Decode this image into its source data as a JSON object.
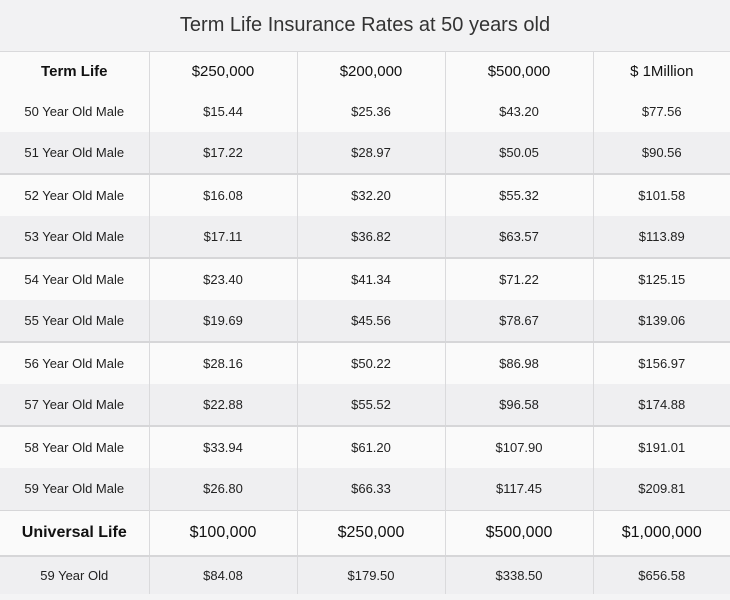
{
  "title": "Term Life Insurance Rates at 50 years old",
  "term": {
    "label": "Term Life",
    "columns": [
      "$250,000",
      "$200,000",
      "$500,000",
      "$ 1Million"
    ],
    "rows": [
      {
        "label": "50 Year Old Male",
        "values": [
          "$15.44",
          "$25.36",
          "$43.20",
          "$77.56"
        ]
      },
      {
        "label": "51 Year Old Male",
        "values": [
          "$17.22",
          "$28.97",
          "$50.05",
          "$90.56"
        ]
      },
      {
        "label": "52 Year Old Male",
        "values": [
          "$16.08",
          "$32.20",
          "$55.32",
          "$101.58"
        ]
      },
      {
        "label": "53 Year Old Male",
        "values": [
          "$17.11",
          "$36.82",
          "$63.57",
          "$113.89"
        ]
      },
      {
        "label": "54 Year Old Male",
        "values": [
          "$23.40",
          "$41.34",
          "$71.22",
          "$125.15"
        ]
      },
      {
        "label": "55 Year Old Male",
        "values": [
          "$19.69",
          "$45.56",
          "$78.67",
          "$139.06"
        ]
      },
      {
        "label": "56 Year Old Male",
        "values": [
          "$28.16",
          "$50.22",
          "$86.98",
          "$156.97"
        ]
      },
      {
        "label": "57 Year Old Male",
        "values": [
          "$22.88",
          "$55.52",
          "$96.58",
          "$174.88"
        ]
      },
      {
        "label": "58 Year Old Male",
        "values": [
          "$33.94",
          "$61.20",
          "$107.90",
          "$191.01"
        ]
      },
      {
        "label": "59 Year Old Male",
        "values": [
          "$26.80",
          "$66.33",
          "$117.45",
          "$209.81"
        ]
      }
    ]
  },
  "universal": {
    "label": "Universal Life",
    "columns": [
      "$100,000",
      "$250,000",
      "$500,000",
      "$1,000,000"
    ],
    "rows": [
      {
        "label": "59 Year Old",
        "values": [
          "$84.08",
          "$179.50",
          "$338.50",
          "$656.58"
        ]
      }
    ]
  }
}
